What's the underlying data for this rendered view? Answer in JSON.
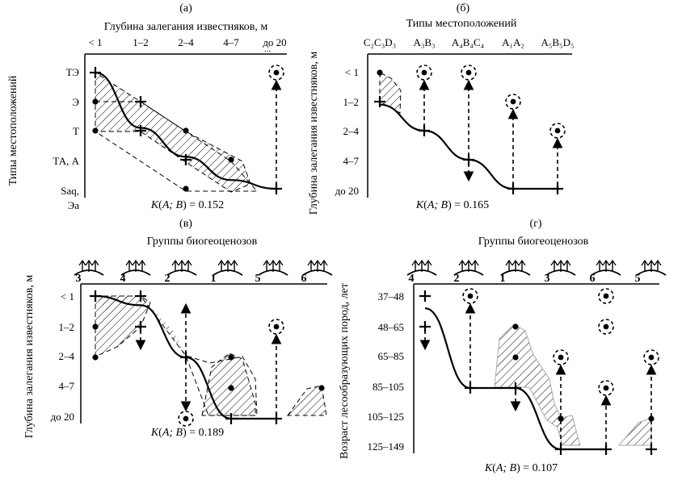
{
  "chart_data": [
    {
      "panel": "(а)",
      "type": "line",
      "title": "Глубина залегания известняков, м",
      "ylabel": "Типы местоположений",
      "x_ticks": [
        "< 1",
        "1–2",
        "2–4",
        "4–7",
        "до 20"
      ],
      "y_ticks": [
        "ТЭ",
        "Э",
        "Т",
        "ТА, А",
        "Saq,",
        "Эа"
      ],
      "x_axis_extra": "...",
      "coefficient": {
        "prefix": "K",
        "args": "A; B",
        "value": "0.152"
      },
      "trend_line": [
        [
          0,
          0
        ],
        [
          1,
          1.9
        ],
        [
          2,
          2.9
        ],
        [
          3,
          3.7
        ],
        [
          4,
          4
        ]
      ],
      "cross_points": [
        [
          0,
          0
        ],
        [
          1,
          1
        ],
        [
          1,
          2
        ],
        [
          2,
          3
        ],
        [
          4,
          4
        ]
      ],
      "dot_points": [
        [
          0,
          1
        ],
        [
          0,
          2
        ],
        [
          2,
          2
        ],
        [
          2,
          4
        ],
        [
          3,
          3
        ]
      ],
      "isolated_points": [
        {
          "x": 4,
          "y": 0
        }
      ],
      "isolated_arrows": [
        {
          "x": 4,
          "from": 4,
          "to": 0
        }
      ]
    },
    {
      "panel": "(б)",
      "type": "line",
      "title": "Типы местоположений",
      "ylabel": "Глубина залегания известняков, м",
      "x_ticks": [
        "C₂C₃D₃",
        "A₃B₃",
        "A₄B₄C₄",
        "A₁A₂",
        "A₅B₅D₅"
      ],
      "y_ticks": [
        "< 1",
        "1–2",
        "2–4",
        "4–7",
        "до 20"
      ],
      "coefficient": {
        "prefix": "K",
        "args": "A; B",
        "value": "0.165"
      },
      "trend_line": [
        [
          0,
          1.1
        ],
        [
          1,
          2
        ],
        [
          2,
          3
        ],
        [
          3,
          4
        ],
        [
          4,
          4
        ]
      ],
      "cross_points": [
        [
          0,
          1
        ],
        [
          1,
          2
        ],
        [
          2,
          3
        ],
        [
          3,
          4
        ],
        [
          4,
          4
        ]
      ],
      "dot_points": [
        [
          0,
          0
        ]
      ],
      "isolated_points": [
        {
          "x": 1,
          "y": 0
        },
        {
          "x": 2,
          "y": 0
        },
        {
          "x": 3,
          "y": 1
        },
        {
          "x": 4,
          "y": 2
        }
      ],
      "isolated_arrows": [
        {
          "x": 1,
          "from": 2,
          "to": 0
        },
        {
          "x": 2,
          "from": 3,
          "to": 0
        },
        {
          "x": 2,
          "from": 3,
          "to": 4
        },
        {
          "x": 3,
          "from": 4,
          "to": 1
        },
        {
          "x": 4,
          "from": 4,
          "to": 2
        }
      ]
    },
    {
      "panel": "(в)",
      "type": "line",
      "title": "Группы биогеоценозов",
      "ylabel": "Глубина залегания известняков, м",
      "x_ticks": [
        "3",
        "4",
        "2",
        "1",
        "5",
        "6"
      ],
      "y_ticks": [
        "< 1",
        "1–2",
        "2–4",
        "4–7",
        "до 20"
      ],
      "coefficient": {
        "prefix": "K",
        "args": "A; B",
        "value": "0.189"
      },
      "trend_line": [
        [
          0,
          0
        ],
        [
          1,
          0.3
        ],
        [
          2,
          2
        ],
        [
          3,
          4
        ],
        [
          4,
          4
        ]
      ],
      "cross_points": [
        [
          0,
          0
        ],
        [
          1,
          0
        ],
        [
          1,
          1
        ],
        [
          2,
          2
        ],
        [
          3,
          4
        ],
        [
          4,
          4
        ]
      ],
      "dot_points": [
        [
          0,
          1
        ],
        [
          0,
          2
        ],
        [
          3,
          2
        ],
        [
          3,
          3
        ],
        [
          5,
          3
        ]
      ],
      "isolated_points": [
        {
          "x": 2,
          "y": 4
        },
        {
          "x": 4,
          "y": 1
        }
      ],
      "isolated_arrows": [
        {
          "x": 2,
          "from": 2,
          "to": 0
        },
        {
          "x": 2,
          "from": 2,
          "to": 4
        },
        {
          "x": 1,
          "from": 1,
          "to": 2
        },
        {
          "x": 4,
          "from": 4,
          "to": 1
        }
      ]
    },
    {
      "panel": "(г)",
      "type": "line",
      "title": "Группы биогеоценозов",
      "ylabel": "Возраст лесообразующих пород, лет",
      "x_ticks": [
        "4",
        "2",
        "1",
        "3",
        "6",
        "5"
      ],
      "y_ticks": [
        "37–48",
        "48–65",
        "65–85",
        "85–105",
        "105–125",
        "125–149"
      ],
      "coefficient": {
        "prefix": "K",
        "args": "A; B",
        "value": "0.107"
      },
      "trend_line": [
        [
          0,
          0.4
        ],
        [
          1,
          3
        ],
        [
          2,
          3
        ],
        [
          3,
          5
        ],
        [
          4,
          5
        ]
      ],
      "cross_points": [
        [
          0,
          0
        ],
        [
          0,
          1
        ],
        [
          1,
          3
        ],
        [
          2,
          3
        ],
        [
          3,
          5
        ],
        [
          4,
          5
        ],
        [
          5,
          5
        ]
      ],
      "dot_points": [
        [
          2,
          1
        ],
        [
          2,
          2
        ],
        [
          3,
          4
        ],
        [
          5,
          4
        ]
      ],
      "isolated_points": [
        {
          "x": 1,
          "y": 0
        },
        {
          "x": 3,
          "y": 2
        },
        {
          "x": 4,
          "y": 0
        },
        {
          "x": 4,
          "y": 1
        },
        {
          "x": 4,
          "y": 3
        },
        {
          "x": 5,
          "y": 2
        }
      ],
      "isolated_arrows": [
        {
          "x": 1,
          "from": 3,
          "to": 0
        },
        {
          "x": 0,
          "from": 1,
          "to": 2
        },
        {
          "x": 2,
          "from": 3,
          "to": 4
        },
        {
          "x": 3,
          "from": 5,
          "to": 2
        },
        {
          "x": 4,
          "from": 5,
          "to": 3
        },
        {
          "x": 5,
          "from": 5,
          "to": 2
        }
      ]
    }
  ]
}
